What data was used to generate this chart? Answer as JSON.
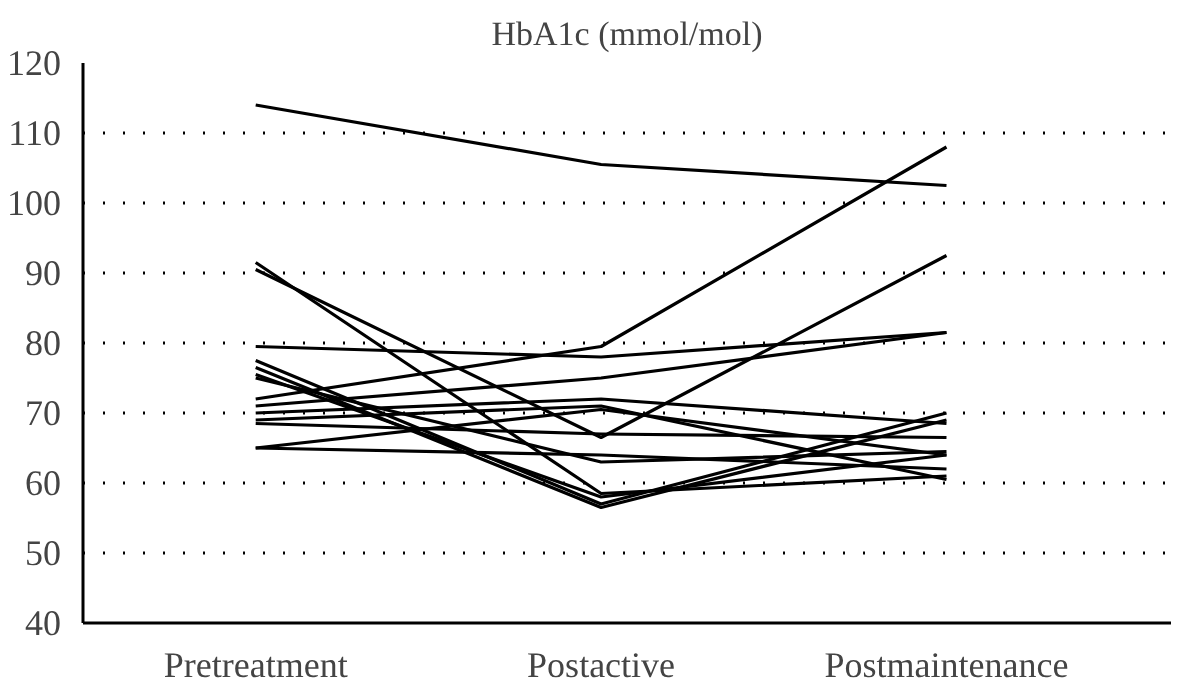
{
  "chart_data": {
    "type": "line",
    "title": "HbA1c (mmol/mol)",
    "categories": [
      "Pretreatment",
      "Postactive",
      "Postmaintenance"
    ],
    "ylim": [
      40,
      120
    ],
    "yticks": [
      40,
      50,
      60,
      70,
      80,
      90,
      100,
      110,
      120
    ],
    "grid": "y",
    "line_style": "solid",
    "series": [
      {
        "color": "#000000",
        "values": [
          114,
          105.5,
          102.5
        ]
      },
      {
        "color": "#000000",
        "values": [
          91.5,
          58.5,
          61
        ]
      },
      {
        "color": "#000000",
        "values": [
          90.5,
          66.5,
          92.5
        ]
      },
      {
        "color": "#000000",
        "values": [
          72,
          79.5,
          108
        ]
      },
      {
        "color": "#000000",
        "values": [
          79.5,
          78,
          81.5
        ]
      },
      {
        "color": "#000000",
        "values": [
          71,
          75,
          81.5
        ]
      },
      {
        "color": "#000000",
        "values": [
          77.5,
          57,
          70
        ]
      },
      {
        "color": "#000000",
        "values": [
          76.5,
          56.5,
          69
        ]
      },
      {
        "color": "#000000",
        "values": [
          75.5,
          58,
          64
        ]
      },
      {
        "color": "#000000",
        "values": [
          75,
          63,
          64.5
        ]
      },
      {
        "color": "#000000",
        "values": [
          70,
          72,
          68.5
        ]
      },
      {
        "color": "#000000",
        "values": [
          69,
          71,
          60.5
        ]
      },
      {
        "color": "#000000",
        "values": [
          68.5,
          67,
          66.5
        ]
      },
      {
        "color": "#000000",
        "values": [
          65,
          70.5,
          64
        ]
      },
      {
        "color": "#000000",
        "values": [
          65,
          64,
          62
        ]
      }
    ]
  }
}
